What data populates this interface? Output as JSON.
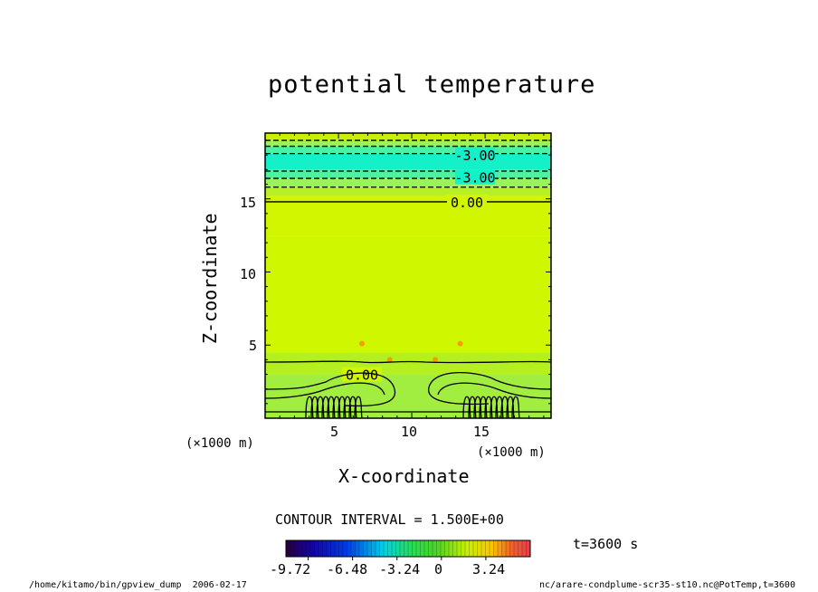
{
  "chart_data": {
    "type": "heatmap",
    "title": "potential temperature",
    "xlabel": "X-coordinate",
    "ylabel": "Z-coordinate",
    "x_unit": "(×1000 m)",
    "y_unit": "(×1000 m)",
    "xlim": [
      0,
      19.5
    ],
    "ylim": [
      0,
      19.5
    ],
    "x_ticks": [
      "5",
      "10",
      "15"
    ],
    "y_ticks": [
      "5",
      "10",
      "15"
    ],
    "x_tick_values": [
      5,
      10,
      15
    ],
    "y_tick_values": [
      5,
      10,
      15
    ],
    "contour_interval": "CONTOUR INTERVAL = 1.500E+00",
    "contour_labels": [
      "-3.00",
      "-3.00",
      "0.00",
      "0.00"
    ],
    "contour_label_z": [
      18,
      16.5,
      14.8,
      3
    ],
    "colorbar": {
      "ticks": [
        "-9.72",
        "-6.48",
        "-3.24",
        "0",
        "3.24"
      ],
      "tick_values": [
        -9.72,
        -6.48,
        -3.24,
        0,
        3.24
      ],
      "range": [
        -11.34,
        6.48
      ]
    },
    "time_label": "t=3600 s",
    "footer_left": "/home/kitamo/bin/gpview_dump  2006-02-17",
    "footer_right": "nc/arare-condplume-scr35-st10.nc@PotTemp,t=3600"
  }
}
